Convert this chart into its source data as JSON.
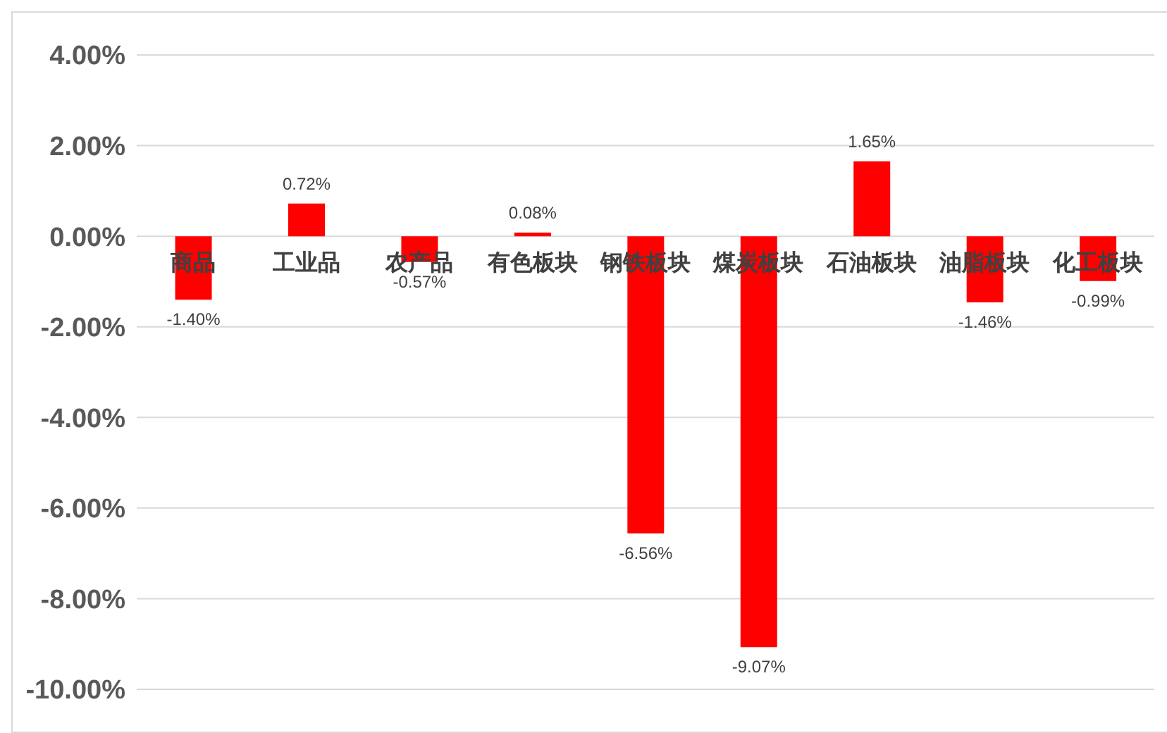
{
  "chart_data": {
    "type": "bar",
    "categories": [
      "商品",
      "工业品",
      "农产品",
      "有色板块",
      "钢铁板块",
      "煤炭板块",
      "石油板块",
      "油脂板块",
      "化工板块"
    ],
    "values": [
      -1.4,
      0.72,
      -0.57,
      0.08,
      -6.56,
      -9.07,
      1.65,
      -1.46,
      -0.99
    ],
    "value_labels": [
      "-1.40%",
      "0.72%",
      "-0.57%",
      "0.08%",
      "-6.56%",
      "-9.07%",
      "1.65%",
      "-1.46%",
      "-0.99%"
    ],
    "color": "#ff0000",
    "ylim": [
      -10,
      4
    ],
    "yticks": [
      {
        "value": -10,
        "label": "-10.00%"
      },
      {
        "value": -8,
        "label": "-8.00%"
      },
      {
        "value": -6,
        "label": "-6.00%"
      },
      {
        "value": -4,
        "label": "-4.00%"
      },
      {
        "value": -2,
        "label": "-2.00%"
      },
      {
        "value": 0,
        "label": "0.00%"
      },
      {
        "value": 2,
        "label": "2.00%"
      },
      {
        "value": 4,
        "label": "4.00%"
      }
    ],
    "grid": "y",
    "legend": false
  }
}
